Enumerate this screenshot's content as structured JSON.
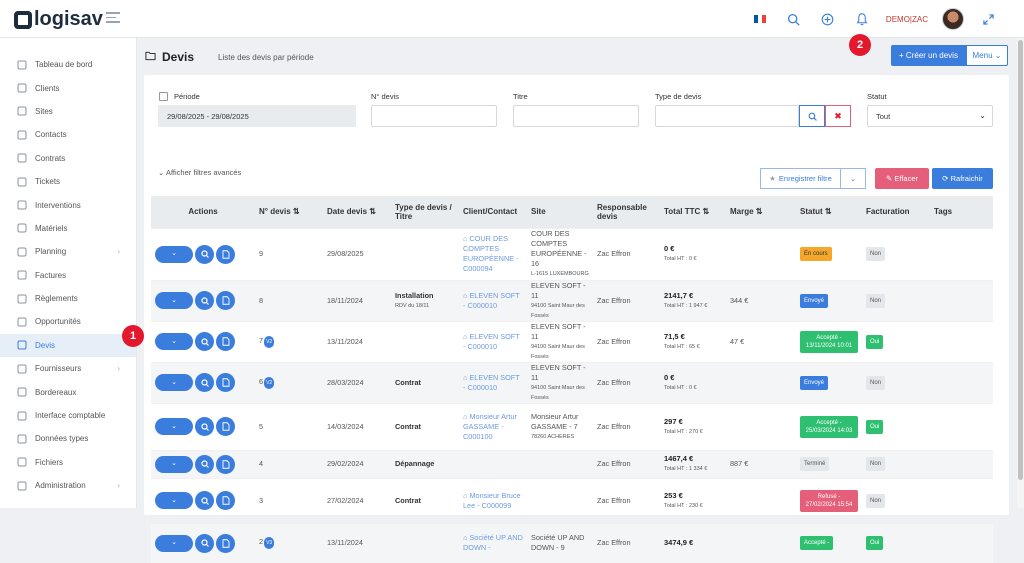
{
  "brand": {
    "logo_text": "logisav"
  },
  "topbar": {
    "user_label": "DEMO|ZAC"
  },
  "colors": {
    "primary": "#3b7ddd",
    "danger": "#e65f7a",
    "success": "#2fbf71",
    "warning": "#f4a72a",
    "marker": "#e3182d"
  },
  "sidebar": {
    "items": [
      {
        "label": "Tableau de bord",
        "icon": "dashboard-icon"
      },
      {
        "label": "Clients",
        "icon": "users-icon"
      },
      {
        "label": "Sites",
        "icon": "building-icon"
      },
      {
        "label": "Contacts",
        "icon": "contact-icon"
      },
      {
        "label": "Contrats",
        "icon": "contract-icon"
      },
      {
        "label": "Tickets",
        "icon": "warning-icon"
      },
      {
        "label": "Interventions",
        "icon": "wrench-icon"
      },
      {
        "label": "Matériels",
        "icon": "gear-icon"
      },
      {
        "label": "Planning",
        "icon": "calendar-icon",
        "has_children": true
      },
      {
        "label": "Factures",
        "icon": "invoice-icon"
      },
      {
        "label": "Règlements",
        "icon": "payment-icon"
      },
      {
        "label": "Opportunités",
        "icon": "target-icon"
      },
      {
        "label": "Devis",
        "icon": "folder-icon",
        "active": true
      },
      {
        "label": "Fournisseurs",
        "icon": "truck-icon",
        "has_children": true
      },
      {
        "label": "Bordereaux",
        "icon": "list-icon"
      },
      {
        "label": "Interface comptable",
        "icon": "external-link-icon"
      },
      {
        "label": "Données types",
        "icon": "database-icon"
      },
      {
        "label": "Fichiers",
        "icon": "file-icon"
      },
      {
        "label": "Administration",
        "icon": "settings-icon",
        "has_children": true
      }
    ]
  },
  "page": {
    "title": "Devis",
    "subtitle": "Liste des devis par période",
    "create_label": "+ Créer un devis",
    "menu_label": "Menu"
  },
  "markers": {
    "m1": "1",
    "m2": "2"
  },
  "filters": {
    "periode_label": "Période",
    "periode_value": "29/08/2025 - 29/08/2025",
    "ndevis_label": "N° devis",
    "titre_label": "Titre",
    "type_label": "Type de devis",
    "statut_label": "Statut",
    "statut_value": "Tout",
    "advanced_label": "Afficher filtres avancés",
    "save_label": "Enregistrer filtre",
    "clear_label": "Effacer",
    "refresh_label": "Rafraichir"
  },
  "table": {
    "headers": {
      "actions": "Actions",
      "ndevis": "N° devis",
      "date": "Date devis",
      "type": "Type de devis / Titre",
      "client": "Client/Contact",
      "site": "Site",
      "resp": "Responsable devis",
      "total": "Total TTC",
      "marge": "Marge",
      "statut": "Statut",
      "facturation": "Facturation",
      "tags": "Tags"
    },
    "rows": [
      {
        "num": "9",
        "version": "",
        "date": "29/08/2025",
        "type": "",
        "type_sub": "",
        "client": "COUR DES COMPTES EUROPÉENNE - C000094",
        "site": "COUR DES COMPTES EUROPÉENNE - 16",
        "site_sub": "L-1615 LUXEMBOURG",
        "resp": "Zac Effron",
        "ttc": "0 €",
        "ht": "Total HT : 0 €",
        "marge": "",
        "statut": "En cours",
        "statut_class": "b-orange",
        "fact": "Non",
        "fact_class": "b-grey"
      },
      {
        "num": "8",
        "version": "",
        "date": "18/11/2024",
        "type": "Installation",
        "type_sub": "RDV du 18/11",
        "client": "ELEVEN SOFT - C000010",
        "site": "ELEVEN SOFT - 11",
        "site_sub": "94100 Saint Maur des Fossés",
        "resp": "Zac Effron",
        "ttc": "2141,7 €",
        "ht": "Total HT : 1 947 €",
        "marge": "344 €",
        "statut": "Envoyé",
        "statut_class": "b-blue",
        "fact": "Non",
        "fact_class": "b-grey"
      },
      {
        "num": "7",
        "version": "V2",
        "date": "13/11/2024",
        "type": "",
        "type_sub": "",
        "client": "ELEVEN SOFT - C000010",
        "site": "ELEVEN SOFT - 11",
        "site_sub": "94100 Saint Maur des Fossés",
        "resp": "Zac Effron",
        "ttc": "71,5 €",
        "ht": "Total HT : 65 €",
        "marge": "47 €",
        "statut": "Accepté - 13/11/2024 10:01",
        "statut_class": "b-green",
        "fact": "Oui",
        "fact_class": "b-green"
      },
      {
        "num": "6",
        "version": "V2",
        "date": "28/03/2024",
        "type": "Contrat",
        "type_sub": "",
        "client": "ELEVEN SOFT - C000010",
        "site": "ELEVEN SOFT - 11",
        "site_sub": "94100 Saint Maur des Fossés",
        "resp": "Zac Effron",
        "ttc": "0 €",
        "ht": "Total HT : 0 €",
        "marge": "",
        "statut": "Envoyé",
        "statut_class": "b-blue",
        "fact": "Non",
        "fact_class": "b-grey"
      },
      {
        "num": "5",
        "version": "",
        "date": "14/03/2024",
        "type": "Contrat",
        "type_sub": "",
        "client": "Monsieur Artur GASSAME - C000100",
        "site": "Monsieur Artur GASSAME - 7",
        "site_sub": "78260 ACHERES",
        "resp": "Zac Effron",
        "ttc": "297 €",
        "ht": "Total HT : 270 €",
        "marge": "",
        "statut": "Accepté - 25/03/2024 14:03",
        "statut_class": "b-green",
        "fact": "Oui",
        "fact_class": "b-green"
      },
      {
        "num": "4",
        "version": "",
        "date": "29/02/2024",
        "type": "Dépannage",
        "type_sub": "",
        "client": "",
        "site": "",
        "site_sub": "",
        "resp": "Zac Effron",
        "ttc": "1467,4 €",
        "ht": "Total HT : 1 334 €",
        "marge": "887 €",
        "statut": "Terminé",
        "statut_class": "b-grey",
        "fact": "Non",
        "fact_class": "b-grey"
      },
      {
        "num": "3",
        "version": "",
        "date": "27/02/2024",
        "type": "Contrat",
        "type_sub": "",
        "client": "Monsieur Bruce Lee - C000099",
        "site": "",
        "site_sub": "",
        "resp": "Zac Effron",
        "ttc": "253 €",
        "ht": "Total HT : 230 €",
        "marge": "",
        "statut": "Refusé - 27/02/2024 15:54",
        "statut_class": "b-red",
        "fact": "Non",
        "fact_class": "b-grey"
      },
      {
        "num": "2",
        "version": "V3",
        "date": "13/11/2024",
        "type": "",
        "type_sub": "",
        "client": "Société UP AND DOWN -",
        "site": "Société UP AND DOWN - 9",
        "site_sub": "",
        "resp": "Zac Effron",
        "ttc": "3474,9 €",
        "ht": "",
        "marge": "",
        "statut": "Accepté -",
        "statut_class": "b-green",
        "fact": "Oui",
        "fact_class": "b-green"
      }
    ]
  }
}
